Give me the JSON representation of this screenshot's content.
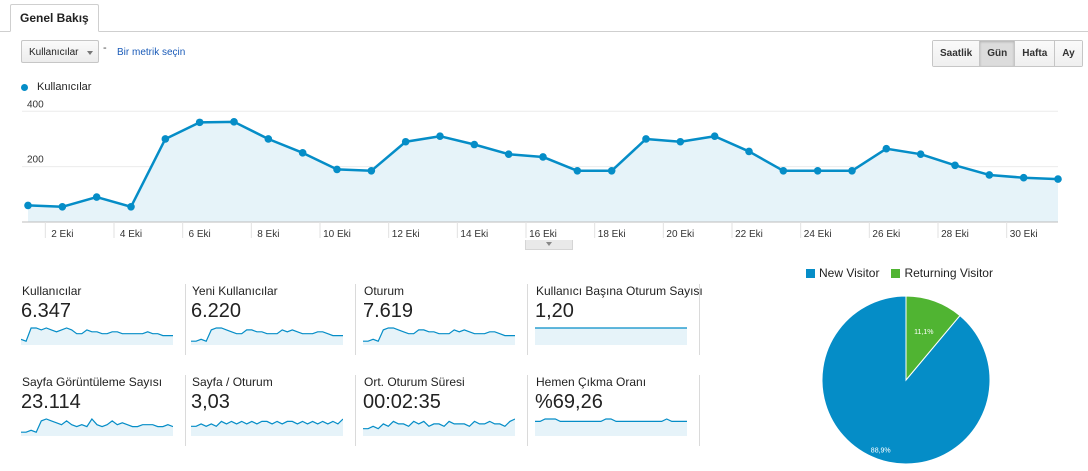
{
  "tab": {
    "label": "Genel Bakış"
  },
  "controls": {
    "metric_select": "Kullanıcılar",
    "separator": "-",
    "pick_metric": "Bir metrik seçin",
    "period_buttons": [
      "Saatlik",
      "Gün",
      "Hafta",
      "Ay"
    ],
    "active_period": "Gün"
  },
  "colors": {
    "series": "#058dc7",
    "area": "#e6f3f9",
    "new_visitor": "#058dc7",
    "returning_visitor": "#50b432"
  },
  "chart_data": [
    {
      "type": "area",
      "series": [
        {
          "name": "Kullanıcılar",
          "x": [
            1,
            2,
            3,
            4,
            5,
            6,
            7,
            8,
            9,
            10,
            11,
            12,
            13,
            14,
            15,
            16,
            17,
            18,
            19,
            20,
            21,
            22,
            23,
            24,
            25,
            26,
            27,
            28,
            29,
            30,
            31
          ],
          "values": [
            60,
            55,
            90,
            55,
            300,
            360,
            362,
            300,
            250,
            190,
            185,
            290,
            310,
            280,
            245,
            235,
            185,
            185,
            300,
            290,
            310,
            255,
            185,
            185,
            185,
            265,
            245,
            205,
            170,
            160,
            155
          ]
        }
      ],
      "x_tick_labels": [
        "2 Eki",
        "4 Eki",
        "6 Eki",
        "8 Eki",
        "10 Eki",
        "12 Eki",
        "14 Eki",
        "16 Eki",
        "18 Eki",
        "20 Eki",
        "22 Eki",
        "24 Eki",
        "26 Eki",
        "28 Eki",
        "30 Eki"
      ],
      "x_tick_values": [
        2,
        4,
        6,
        8,
        10,
        12,
        14,
        16,
        18,
        20,
        22,
        24,
        26,
        28,
        30
      ],
      "y_ticks": [
        200,
        400
      ],
      "ylim": [
        0,
        430
      ],
      "grid": true,
      "legend": "top-left"
    },
    {
      "type": "pie",
      "categories": [
        "New Visitor",
        "Returning Visitor"
      ],
      "values": [
        88.9,
        11.1
      ],
      "labels": [
        "88,9%",
        "11,1%"
      ],
      "legend": "top"
    }
  ],
  "metrics": [
    {
      "label": "Kullanıcılar",
      "value": "6.347",
      "spark": [
        3,
        2,
        9,
        9,
        8,
        9,
        8,
        7,
        8,
        9,
        8,
        6,
        6,
        8,
        7,
        7,
        6,
        6,
        7,
        7,
        6,
        6,
        6,
        6,
        6,
        7,
        6,
        6,
        5,
        5,
        5
      ]
    },
    {
      "label": "Yeni Kullanıcılar",
      "value": "6.220",
      "spark": [
        2,
        2,
        3,
        2,
        8,
        9,
        9,
        8,
        7,
        6,
        6,
        8,
        8,
        7,
        7,
        6,
        6,
        6,
        8,
        7,
        8,
        7,
        6,
        6,
        6,
        7,
        7,
        6,
        5,
        5,
        5
      ]
    },
    {
      "label": "Oturum",
      "value": "7.619",
      "spark": [
        2,
        2,
        3,
        2,
        8,
        9,
        9,
        8,
        7,
        6,
        6,
        8,
        8,
        7,
        7,
        6,
        6,
        6,
        8,
        7,
        8,
        7,
        6,
        6,
        6,
        7,
        7,
        6,
        5,
        5,
        5
      ]
    },
    {
      "label": "Kullanıcı Başına Oturum Sayısı",
      "value": "1,20",
      "spark": [
        5,
        5,
        5,
        5,
        5,
        5,
        5,
        5,
        5,
        5,
        5,
        5,
        5,
        5,
        5,
        5,
        5,
        5,
        5,
        5,
        5,
        5,
        5,
        5,
        5,
        5,
        5,
        5,
        5,
        5,
        5
      ]
    },
    {
      "label": "Sayfa Görüntüleme Sayısı",
      "value": "23.114",
      "spark": [
        2,
        2,
        3,
        2,
        8,
        9,
        8,
        7,
        6,
        8,
        6,
        5,
        6,
        5,
        9,
        6,
        5,
        6,
        8,
        6,
        7,
        6,
        5,
        5,
        6,
        6,
        6,
        5,
        5,
        6,
        5
      ]
    },
    {
      "label": "Sayfa / Oturum",
      "value": "3,03",
      "spark": [
        4,
        4,
        5,
        4,
        5,
        4,
        6,
        5,
        6,
        5,
        6,
        5,
        6,
        5,
        6,
        6,
        5,
        6,
        5,
        6,
        6,
        5,
        6,
        5,
        6,
        5,
        6,
        5,
        6,
        5,
        7
      ]
    },
    {
      "label": "Ort. Oturum Süresi",
      "value": "00:02:35",
      "spark": [
        3,
        3,
        4,
        3,
        5,
        4,
        6,
        5,
        5,
        4,
        6,
        5,
        6,
        4,
        5,
        5,
        4,
        6,
        5,
        5,
        5,
        4,
        6,
        5,
        5,
        6,
        5,
        5,
        4,
        6,
        7
      ]
    },
    {
      "label": "Hemen Çıkma Oranı",
      "value": "%69,26",
      "spark": [
        6,
        6,
        7,
        7,
        7,
        6,
        6,
        6,
        6,
        6,
        6,
        6,
        6,
        6,
        7,
        7,
        6,
        6,
        6,
        6,
        6,
        6,
        6,
        6,
        6,
        6,
        7,
        6,
        6,
        6,
        6
      ]
    }
  ]
}
